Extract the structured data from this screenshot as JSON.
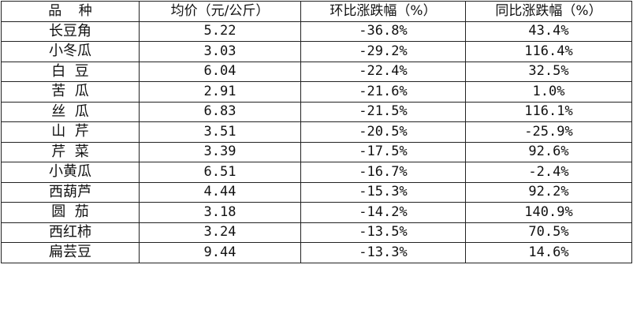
{
  "table": {
    "headers": [
      "品    种",
      "均价（元/公斤）",
      "环比涨跌幅（%）",
      "同比涨跌幅（%）"
    ],
    "rows": [
      {
        "name": "长豆角",
        "price": "5.22",
        "mom": "-36.8%",
        "yoy": "43.4%"
      },
      {
        "name": "小冬瓜",
        "price": "3.03",
        "mom": "-29.2%",
        "yoy": "116.4%"
      },
      {
        "name": "白  豆",
        "price": "6.04",
        "mom": "-22.4%",
        "yoy": "32.5%"
      },
      {
        "name": "苦  瓜",
        "price": "2.91",
        "mom": "-21.6%",
        "yoy": "1.0%"
      },
      {
        "name": "丝  瓜",
        "price": "6.83",
        "mom": "-21.5%",
        "yoy": "116.1%"
      },
      {
        "name": "山  芹",
        "price": "3.51",
        "mom": "-20.5%",
        "yoy": "-25.9%"
      },
      {
        "name": "芹  菜",
        "price": "3.39",
        "mom": "-17.5%",
        "yoy": "92.6%"
      },
      {
        "name": "小黄瓜",
        "price": "6.51",
        "mom": "-16.7%",
        "yoy": "-2.4%"
      },
      {
        "name": "西葫芦",
        "price": "4.44",
        "mom": "-15.3%",
        "yoy": "92.2%"
      },
      {
        "name": "圆  茄",
        "price": "3.18",
        "mom": "-14.2%",
        "yoy": "140.9%"
      },
      {
        "name": "西红柿",
        "price": "3.24",
        "mom": "-13.5%",
        "yoy": "70.5%"
      },
      {
        "name": "扁芸豆",
        "price": "9.44",
        "mom": "-13.3%",
        "yoy": "14.6%"
      }
    ]
  }
}
